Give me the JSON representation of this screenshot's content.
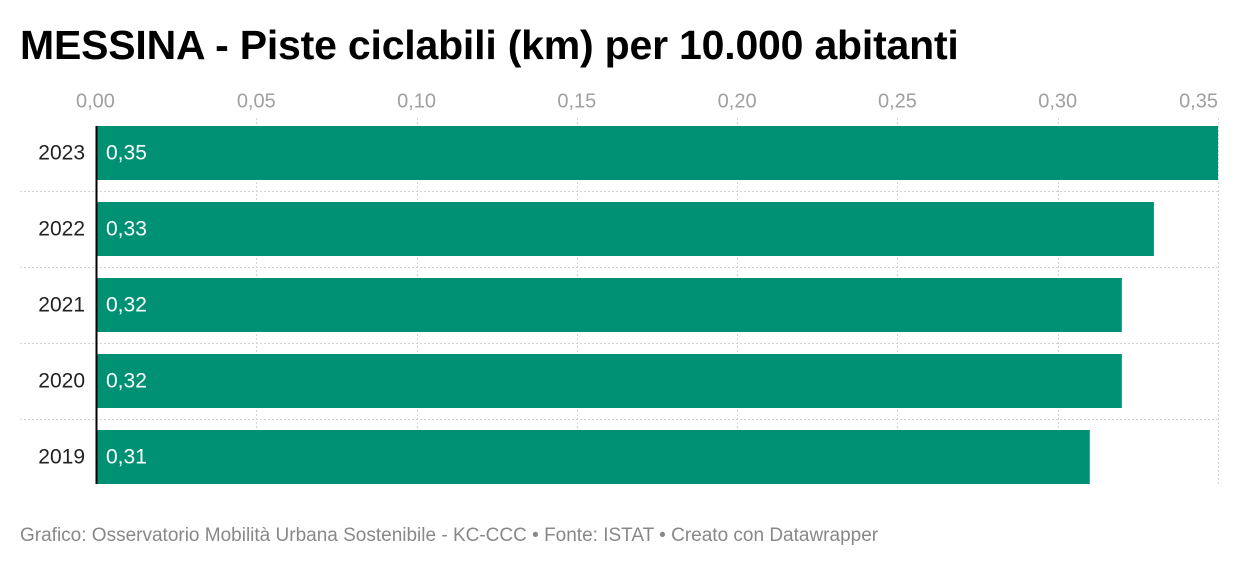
{
  "title": "MESSINA - Piste ciclabili (km) per 10.000 abitanti",
  "footer": {
    "credit": "Grafico: Osservatorio Mobilità Urbana Sostenibile - KC-CCC",
    "source": "Fonte: ISTAT",
    "tool": "Creato con Datawrapper",
    "separator": "•"
  },
  "colors": {
    "bar": "#009175",
    "bar_label": "#ffffff",
    "tick_label": "#a0a0a0",
    "category_label": "#222222",
    "grid": "#d4d4d4",
    "baseline": "#000000"
  },
  "chart_data": {
    "type": "bar",
    "orientation": "horizontal",
    "categories": [
      "2023",
      "2022",
      "2021",
      "2020",
      "2019"
    ],
    "values": [
      0.35,
      0.33,
      0.32,
      0.32,
      0.31
    ],
    "value_labels": [
      "0,35",
      "0,33",
      "0,32",
      "0,32",
      "0,31"
    ],
    "xlim": [
      0,
      0.35
    ],
    "xticks": [
      0,
      0.05,
      0.1,
      0.15,
      0.2,
      0.25,
      0.3,
      0.35
    ],
    "xtick_labels": [
      "0,00",
      "0,05",
      "0,10",
      "0,15",
      "0,20",
      "0,25",
      "0,30",
      "0,35"
    ],
    "grid": true,
    "tick_position": "top",
    "xlabel": "",
    "ylabel": ""
  }
}
